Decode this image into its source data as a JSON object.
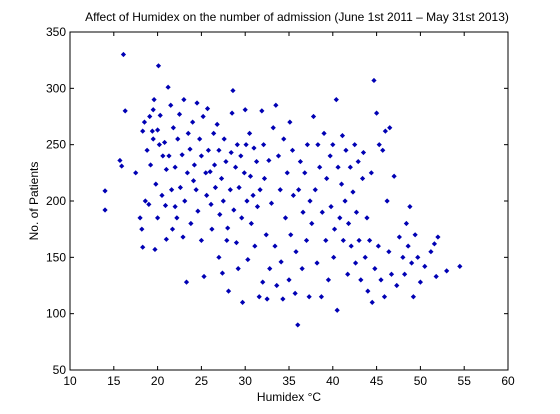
{
  "chart_data": {
    "type": "scatter",
    "title": "Affect of Humidex on the number of admission (June 1st 2011 – May 31st 2013)",
    "xlabel": "Humidex °C",
    "ylabel": "No. of Patients",
    "xlim": [
      10,
      60
    ],
    "ylim": [
      50,
      350
    ],
    "xticks": [
      10,
      15,
      20,
      25,
      30,
      35,
      40,
      45,
      50,
      55,
      60
    ],
    "yticks": [
      50,
      100,
      150,
      200,
      250,
      300,
      350
    ],
    "grid": false,
    "legend": "none",
    "marker": "diamond",
    "color": "#0000b4",
    "series": [
      {
        "points": [
          [
            14.0,
            209
          ],
          [
            14.0,
            192
          ],
          [
            15.7,
            236
          ],
          [
            15.9,
            231
          ],
          [
            16.1,
            330
          ],
          [
            16.3,
            280
          ],
          [
            17.5,
            225
          ],
          [
            18.0,
            185
          ],
          [
            18.2,
            175
          ],
          [
            18.3,
            159
          ],
          [
            18.3,
            262
          ],
          [
            18.5,
            270
          ],
          [
            18.6,
            200
          ],
          [
            18.8,
            245
          ],
          [
            19.0,
            197
          ],
          [
            19.1,
            275
          ],
          [
            19.2,
            232
          ],
          [
            19.4,
            262
          ],
          [
            19.5,
            281
          ],
          [
            19.5,
            255
          ],
          [
            19.6,
            290
          ],
          [
            19.7,
            157
          ],
          [
            19.8,
            215
          ],
          [
            20.0,
            185
          ],
          [
            20.0,
            263
          ],
          [
            20.1,
            320
          ],
          [
            20.2,
            250
          ],
          [
            20.3,
            276
          ],
          [
            20.5,
            205
          ],
          [
            20.6,
            240
          ],
          [
            20.8,
            252
          ],
          [
            20.9,
            196
          ],
          [
            21.0,
            166
          ],
          [
            21.0,
            228
          ],
          [
            21.2,
            301
          ],
          [
            21.3,
            240
          ],
          [
            21.5,
            285
          ],
          [
            21.6,
            210
          ],
          [
            21.7,
            175
          ],
          [
            21.8,
            265
          ],
          [
            22.0,
            230
          ],
          [
            22.0,
            195
          ],
          [
            22.2,
            185
          ],
          [
            22.3,
            255
          ],
          [
            22.5,
            277
          ],
          [
            22.6,
            212
          ],
          [
            22.8,
            241
          ],
          [
            22.9,
            168
          ],
          [
            23.0,
            290
          ],
          [
            23.1,
            200
          ],
          [
            23.3,
            128
          ],
          [
            23.4,
            225
          ],
          [
            23.5,
            260
          ],
          [
            23.7,
            246
          ],
          [
            23.8,
            180
          ],
          [
            24.0,
            270
          ],
          [
            24.1,
            218
          ],
          [
            24.2,
            232
          ],
          [
            24.4,
            210
          ],
          [
            24.5,
            287
          ],
          [
            24.6,
            191
          ],
          [
            24.8,
            255
          ],
          [
            25.0,
            240
          ],
          [
            25.0,
            165
          ],
          [
            25.2,
            275
          ],
          [
            25.3,
            133
          ],
          [
            25.5,
            225
          ],
          [
            25.6,
            205
          ],
          [
            25.7,
            282
          ],
          [
            25.8,
            245
          ],
          [
            26.0,
            226
          ],
          [
            26.1,
            197
          ],
          [
            26.2,
            175
          ],
          [
            26.4,
            260
          ],
          [
            26.5,
            232
          ],
          [
            26.6,
            212
          ],
          [
            26.8,
            268
          ],
          [
            27.0,
            245
          ],
          [
            27.0,
            150
          ],
          [
            27.1,
            188
          ],
          [
            27.3,
            220
          ],
          [
            27.4,
            136
          ],
          [
            27.5,
            200
          ],
          [
            27.6,
            255
          ],
          [
            27.8,
            235
          ],
          [
            27.9,
            165
          ],
          [
            28.0,
            176
          ],
          [
            28.1,
            120
          ],
          [
            28.3,
            210
          ],
          [
            28.4,
            243
          ],
          [
            28.5,
            278
          ],
          [
            28.6,
            298
          ],
          [
            28.7,
            192
          ],
          [
            28.9,
            230
          ],
          [
            29.0,
            163
          ],
          [
            29.1,
            250
          ],
          [
            29.2,
            140
          ],
          [
            29.3,
            212
          ],
          [
            29.5,
            240
          ],
          [
            29.6,
            185
          ],
          [
            29.7,
            110
          ],
          [
            29.9,
            225
          ],
          [
            30.0,
            281
          ],
          [
            30.1,
            250
          ],
          [
            30.2,
            200
          ],
          [
            30.3,
            148
          ],
          [
            30.5,
            260
          ],
          [
            30.6,
            222
          ],
          [
            30.7,
            180
          ],
          [
            30.9,
            205
          ],
          [
            31.0,
            247
          ],
          [
            31.1,
            160
          ],
          [
            31.3,
            235
          ],
          [
            31.4,
            195
          ],
          [
            31.6,
            115
          ],
          [
            31.7,
            210
          ],
          [
            31.9,
            280
          ],
          [
            32.0,
            128
          ],
          [
            32.1,
            250
          ],
          [
            32.2,
            220
          ],
          [
            32.4,
            170
          ],
          [
            32.5,
            113
          ],
          [
            32.7,
            236
          ],
          [
            32.8,
            140
          ],
          [
            33.0,
            198
          ],
          [
            33.2,
            265
          ],
          [
            33.4,
            160
          ],
          [
            33.5,
            285
          ],
          [
            33.6,
            125
          ],
          [
            33.8,
            240
          ],
          [
            34.0,
            210
          ],
          [
            34.1,
            146
          ],
          [
            34.3,
            113
          ],
          [
            34.4,
            255
          ],
          [
            34.6,
            185
          ],
          [
            34.8,
            225
          ],
          [
            35.0,
            130
          ],
          [
            35.1,
            270
          ],
          [
            35.2,
            170
          ],
          [
            35.4,
            245
          ],
          [
            35.5,
            205
          ],
          [
            35.7,
            118
          ],
          [
            35.8,
            155
          ],
          [
            36.0,
            90
          ],
          [
            36.1,
            210
          ],
          [
            36.3,
            235
          ],
          [
            36.5,
            140
          ],
          [
            36.6,
            190
          ],
          [
            36.8,
            225
          ],
          [
            37.0,
            165
          ],
          [
            37.1,
            250
          ],
          [
            37.3,
            115
          ],
          [
            37.4,
            200
          ],
          [
            37.6,
            180
          ],
          [
            37.8,
            275
          ],
          [
            38.0,
            210
          ],
          [
            38.2,
            145
          ],
          [
            38.3,
            250
          ],
          [
            38.5,
            230
          ],
          [
            38.7,
            115
          ],
          [
            38.8,
            190
          ],
          [
            39.0,
            260
          ],
          [
            39.2,
            165
          ],
          [
            39.3,
            220
          ],
          [
            39.5,
            130
          ],
          [
            39.7,
            240
          ],
          [
            39.8,
            195
          ],
          [
            40.0,
            250
          ],
          [
            40.1,
            150
          ],
          [
            40.2,
            175
          ],
          [
            40.4,
            290
          ],
          [
            40.5,
            103
          ],
          [
            40.6,
            230
          ],
          [
            40.8,
            185
          ],
          [
            41.0,
            215
          ],
          [
            41.1,
            258
          ],
          [
            41.2,
            165
          ],
          [
            41.4,
            200
          ],
          [
            41.5,
            245
          ],
          [
            41.7,
            135
          ],
          [
            41.8,
            180
          ],
          [
            42.0,
            230
          ],
          [
            42.1,
            160
          ],
          [
            42.3,
            208
          ],
          [
            42.5,
            250
          ],
          [
            42.6,
            145
          ],
          [
            42.7,
            190
          ],
          [
            42.9,
            235
          ],
          [
            43.0,
            165
          ],
          [
            43.2,
            130
          ],
          [
            43.4,
            220
          ],
          [
            43.5,
            243
          ],
          [
            43.7,
            150
          ],
          [
            43.9,
            185
          ],
          [
            44.0,
            120
          ],
          [
            44.2,
            165
          ],
          [
            44.4,
            225
          ],
          [
            44.5,
            110
          ],
          [
            44.7,
            307
          ],
          [
            44.8,
            140
          ],
          [
            45.0,
            278
          ],
          [
            45.2,
            160
          ],
          [
            45.3,
            250
          ],
          [
            45.5,
            130
          ],
          [
            45.7,
            245
          ],
          [
            45.9,
            115
          ],
          [
            46.0,
            262
          ],
          [
            46.2,
            200
          ],
          [
            46.4,
            155
          ],
          [
            46.5,
            265
          ],
          [
            46.7,
            135
          ],
          [
            47.0,
            222
          ],
          [
            47.3,
            125
          ],
          [
            47.6,
            168
          ],
          [
            48.0,
            150
          ],
          [
            48.2,
            135
          ],
          [
            48.4,
            180
          ],
          [
            48.6,
            160
          ],
          [
            48.8,
            195
          ],
          [
            49.0,
            145
          ],
          [
            49.2,
            115
          ],
          [
            49.4,
            170
          ],
          [
            49.7,
            150
          ],
          [
            50.0,
            128
          ],
          [
            50.5,
            142
          ],
          [
            51.2,
            155
          ],
          [
            51.6,
            162
          ],
          [
            51.8,
            133
          ],
          [
            52.0,
            168
          ],
          [
            53.0,
            138
          ],
          [
            54.5,
            142
          ]
        ]
      }
    ]
  }
}
